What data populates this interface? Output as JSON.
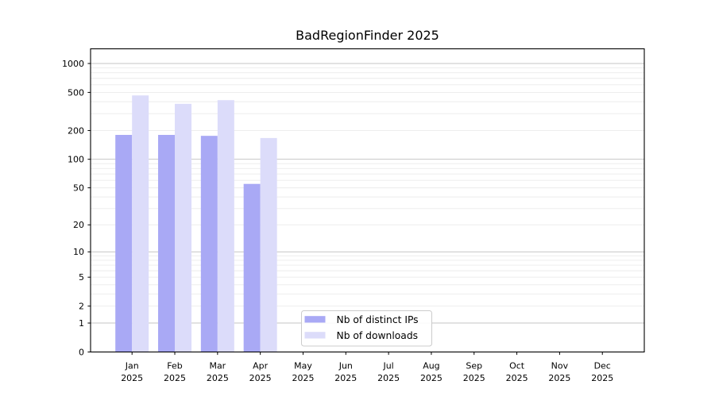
{
  "chart_data": {
    "type": "bar",
    "title": "BadRegionFinder 2025",
    "scale": "log1p",
    "grid": "both",
    "x_months": [
      "Jan",
      "Feb",
      "Mar",
      "Apr",
      "May",
      "Jun",
      "Jul",
      "Aug",
      "Sep",
      "Oct",
      "Nov",
      "Dec"
    ],
    "x_year": "2025",
    "yticks": [
      0,
      1,
      2,
      5,
      10,
      20,
      50,
      100,
      200,
      500,
      1000
    ],
    "ylim": [
      0,
      1420
    ],
    "legend_position": "inside-bottom-center-left",
    "series": [
      {
        "name": "Nb of distinct IPs",
        "color": "#a9a9f5",
        "values": [
          180,
          180,
          176,
          55,
          null,
          null,
          null,
          null,
          null,
          null,
          null,
          null
        ]
      },
      {
        "name": "Nb of downloads",
        "color": "#dcdcfa",
        "values": [
          465,
          380,
          415,
          167,
          null,
          null,
          null,
          null,
          null,
          null,
          null,
          null
        ]
      }
    ]
  }
}
